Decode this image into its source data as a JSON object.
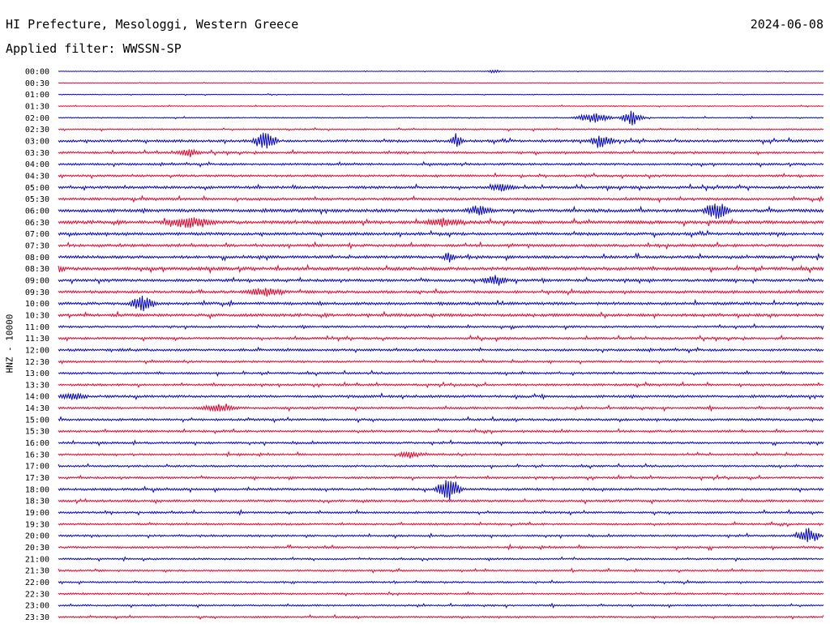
{
  "header": {
    "station": "HI Prefecture, Mesologgi, Western Greece",
    "date": "2024-06-08",
    "filter": "Applied filter: WWSSN-SP"
  },
  "chart_data": {
    "type": "helicorder",
    "ylabel": "HNZ - 10000",
    "rows": [
      "00:00",
      "00:30",
      "01:00",
      "01:30",
      "02:00",
      "02:30",
      "03:00",
      "03:30",
      "04:00",
      "04:30",
      "05:00",
      "05:30",
      "06:00",
      "06:30",
      "07:00",
      "07:30",
      "08:00",
      "08:30",
      "09:00",
      "09:30",
      "10:00",
      "10:30",
      "11:00",
      "11:30",
      "12:00",
      "12:30",
      "13:00",
      "13:30",
      "14:00",
      "14:30",
      "15:00",
      "15:30",
      "16:00",
      "16:30",
      "17:00",
      "17:30",
      "18:00",
      "18:30",
      "19:00",
      "19:30",
      "20:00",
      "20:30",
      "21:00",
      "21:30",
      "22:00",
      "22:30",
      "23:00",
      "23:30"
    ],
    "series_colors": [
      "#0000cc",
      "#e8002a"
    ],
    "row_noise": [
      0.3,
      0.3,
      0.4,
      0.5,
      0.6,
      0.8,
      1.4,
      1.2,
      1.2,
      1.2,
      1.5,
      1.4,
      1.8,
      1.8,
      1.6,
      1.5,
      1.6,
      1.8,
      1.5,
      1.5,
      1.6,
      1.6,
      1.2,
      1.3,
      1.3,
      1.1,
      1.2,
      1.2,
      1.4,
      1.3,
      1.3,
      1.2,
      1.2,
      1.1,
      1.1,
      1.2,
      1.3,
      1.3,
      1.2,
      1.1,
      1.1,
      1.2,
      1.0,
      1.0,
      1.0,
      1.0,
      1.0,
      1.0
    ],
    "bursts": [
      {
        "row": 0,
        "t": 0.57,
        "amp": 3,
        "dur": 0.01
      },
      {
        "row": 4,
        "t": 0.7,
        "amp": 6,
        "dur": 0.03
      },
      {
        "row": 4,
        "t": 0.75,
        "amp": 9,
        "dur": 0.02
      },
      {
        "row": 6,
        "t": 0.27,
        "amp": 11,
        "dur": 0.02
      },
      {
        "row": 6,
        "t": 0.52,
        "amp": 8,
        "dur": 0.01
      },
      {
        "row": 6,
        "t": 0.71,
        "amp": 8,
        "dur": 0.02
      },
      {
        "row": 7,
        "t": 0.17,
        "amp": 4,
        "dur": 0.02
      },
      {
        "row": 10,
        "t": 0.58,
        "amp": 4,
        "dur": 0.02
      },
      {
        "row": 12,
        "t": 0.55,
        "amp": 6,
        "dur": 0.02
      },
      {
        "row": 12,
        "t": 0.86,
        "amp": 12,
        "dur": 0.02
      },
      {
        "row": 13,
        "t": 0.17,
        "amp": 6,
        "dur": 0.04
      },
      {
        "row": 13,
        "t": 0.5,
        "amp": 5,
        "dur": 0.03
      },
      {
        "row": 16,
        "t": 0.51,
        "amp": 6,
        "dur": 0.01
      },
      {
        "row": 17,
        "t": 0.0,
        "amp": 4,
        "dur": 0.01
      },
      {
        "row": 18,
        "t": 0.57,
        "amp": 6,
        "dur": 0.02
      },
      {
        "row": 19,
        "t": 0.27,
        "amp": 5,
        "dur": 0.03
      },
      {
        "row": 20,
        "t": 0.11,
        "amp": 10,
        "dur": 0.02
      },
      {
        "row": 28,
        "t": 0.02,
        "amp": 5,
        "dur": 0.02
      },
      {
        "row": 29,
        "t": 0.21,
        "amp": 4,
        "dur": 0.03
      },
      {
        "row": 33,
        "t": 0.46,
        "amp": 4,
        "dur": 0.02
      },
      {
        "row": 36,
        "t": 0.51,
        "amp": 16,
        "dur": 0.02
      },
      {
        "row": 40,
        "t": 0.98,
        "amp": 10,
        "dur": 0.02
      }
    ]
  }
}
